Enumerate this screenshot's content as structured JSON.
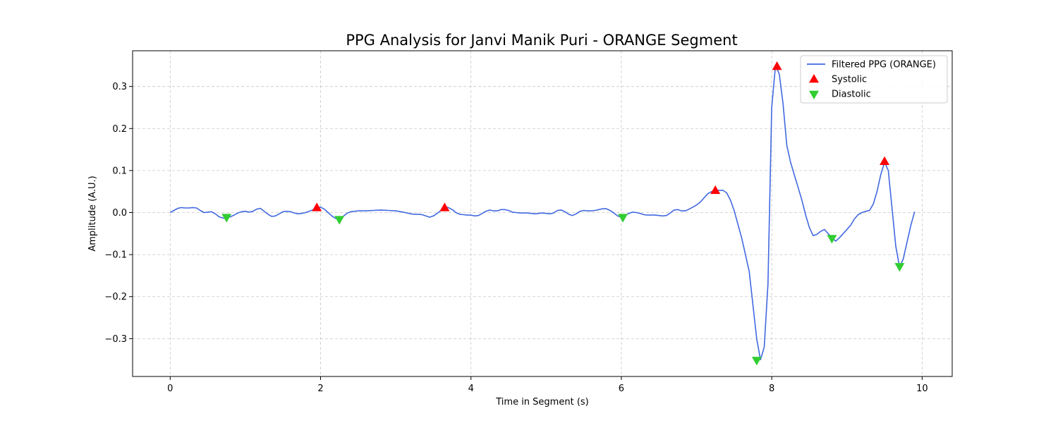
{
  "chart_data": {
    "type": "line",
    "title": "PPG Analysis for Janvi Manik Puri - ORANGE Segment",
    "xlabel": "Time in Segment (s)",
    "ylabel": "Amplitude (A.U.)",
    "xlim": [
      -0.5,
      10.4
    ],
    "ylim": [
      -0.39,
      0.385
    ],
    "x_ticks": [
      0,
      2,
      4,
      6,
      8,
      10
    ],
    "x_tick_labels": [
      "0",
      "2",
      "4",
      "6",
      "8",
      "10"
    ],
    "y_ticks": [
      -0.3,
      -0.2,
      -0.1,
      0.0,
      0.1,
      0.2,
      0.3
    ],
    "y_tick_labels": [
      "−0.3",
      "−0.2",
      "−0.1",
      "0.0",
      "0.1",
      "0.2",
      "0.3"
    ],
    "grid": true,
    "legend_position": "top-right",
    "series": [
      {
        "name": "Filtered PPG (ORANGE)",
        "kind": "line",
        "color": "#4169e1",
        "x": [
          0,
          0.05,
          0.1,
          0.15,
          0.2,
          0.25,
          0.3,
          0.35,
          0.4,
          0.45,
          0.5,
          0.55,
          0.6,
          0.65,
          0.7,
          0.75,
          0.8,
          0.85,
          0.9,
          0.95,
          1.0,
          1.05,
          1.1,
          1.15,
          1.2,
          1.25,
          1.3,
          1.35,
          1.4,
          1.45,
          1.5,
          1.55,
          1.6,
          1.65,
          1.7,
          1.75,
          1.8,
          1.85,
          1.9,
          1.95,
          2.0,
          2.05,
          2.1,
          2.15,
          2.2,
          2.25,
          2.3,
          2.35,
          2.4,
          2.5,
          2.6,
          2.7,
          2.8,
          2.9,
          3.0,
          3.1,
          3.2,
          3.25,
          3.3,
          3.35,
          3.4,
          3.45,
          3.5,
          3.55,
          3.6,
          3.65,
          3.7,
          3.75,
          3.8,
          3.85,
          3.9,
          3.95,
          4.0,
          4.05,
          4.1,
          4.15,
          4.2,
          4.25,
          4.3,
          4.35,
          4.4,
          4.45,
          4.5,
          4.55,
          4.6,
          4.65,
          4.7,
          4.75,
          4.8,
          4.85,
          4.9,
          4.95,
          5.0,
          5.05,
          5.1,
          5.15,
          5.2,
          5.25,
          5.3,
          5.35,
          5.4,
          5.45,
          5.5,
          5.55,
          5.6,
          5.65,
          5.7,
          5.75,
          5.8,
          5.85,
          5.9,
          5.95,
          6.0,
          6.05,
          6.1,
          6.15,
          6.2,
          6.25,
          6.3,
          6.35,
          6.4,
          6.45,
          6.5,
          6.55,
          6.6,
          6.65,
          6.7,
          6.75,
          6.8,
          6.85,
          6.9,
          6.95,
          7.0,
          7.05,
          7.1,
          7.15,
          7.2,
          7.25,
          7.3,
          7.35,
          7.4,
          7.45,
          7.5,
          7.6,
          7.7,
          7.75,
          7.8,
          7.85,
          7.9,
          7.95,
          8.0,
          8.05,
          8.1,
          8.15,
          8.2,
          8.25,
          8.3,
          8.35,
          8.4,
          8.45,
          8.5,
          8.55,
          8.6,
          8.65,
          8.7,
          8.75,
          8.8,
          8.85,
          8.9,
          8.95,
          9.0,
          9.05,
          9.1,
          9.15,
          9.2,
          9.25,
          9.3,
          9.35,
          9.4,
          9.45,
          9.5,
          9.55,
          9.6,
          9.65,
          9.7,
          9.75,
          9.8,
          9.85,
          9.9
        ],
        "y": [
          0.0,
          0.005,
          0.01,
          0.012,
          0.011,
          0.011,
          0.012,
          0.011,
          0.005,
          0.0,
          0.001,
          0.002,
          -0.003,
          -0.01,
          -0.013,
          -0.013,
          -0.01,
          -0.006,
          -0.001,
          0.002,
          0.003,
          0.001,
          0.003,
          0.008,
          0.01,
          0.003,
          -0.004,
          -0.009,
          -0.008,
          -0.003,
          0.002,
          0.003,
          0.002,
          -0.001,
          -0.003,
          -0.002,
          0.0,
          0.003,
          0.007,
          0.012,
          0.013,
          0.008,
          0.0,
          -0.008,
          -0.014,
          -0.016,
          -0.009,
          -0.002,
          0.002,
          0.004,
          0.004,
          0.005,
          0.006,
          0.005,
          0.004,
          0.001,
          -0.003,
          -0.004,
          -0.004,
          -0.005,
          -0.008,
          -0.011,
          -0.008,
          -0.002,
          0.005,
          0.013,
          0.012,
          0.007,
          0.0,
          -0.004,
          -0.005,
          -0.006,
          -0.006,
          -0.008,
          -0.007,
          -0.002,
          0.003,
          0.006,
          0.004,
          0.004,
          0.007,
          0.007,
          0.005,
          0.001,
          0.0,
          -0.001,
          -0.001,
          -0.001,
          -0.002,
          -0.003,
          -0.002,
          -0.001,
          -0.002,
          -0.003,
          -0.001,
          0.005,
          0.006,
          0.002,
          -0.004,
          -0.007,
          -0.003,
          0.003,
          0.005,
          0.004,
          0.004,
          0.005,
          0.007,
          0.009,
          0.009,
          0.005,
          -0.001,
          -0.008,
          -0.011,
          -0.007,
          -0.002,
          0.001,
          0.0,
          -0.002,
          -0.005,
          -0.006,
          -0.006,
          -0.006,
          -0.007,
          -0.008,
          -0.007,
          -0.001,
          0.006,
          0.007,
          0.004,
          0.004,
          0.008,
          0.013,
          0.018,
          0.025,
          0.035,
          0.045,
          0.05,
          0.052,
          0.053,
          0.053,
          0.047,
          0.03,
          0.005,
          -0.06,
          -0.14,
          -0.22,
          -0.3,
          -0.35,
          -0.32,
          -0.17,
          0.25,
          0.35,
          0.33,
          0.26,
          0.16,
          0.12,
          0.09,
          0.06,
          0.03,
          -0.005,
          -0.035,
          -0.055,
          -0.052,
          -0.045,
          -0.04,
          -0.05,
          -0.06,
          -0.068,
          -0.06,
          -0.05,
          -0.04,
          -0.03,
          -0.015,
          -0.005,
          0.0,
          0.003,
          0.005,
          0.02,
          0.05,
          0.09,
          0.12,
          0.1,
          0.01,
          -0.08,
          -0.13,
          -0.11,
          -0.07,
          -0.03,
          0.002
        ]
      },
      {
        "name": "Systolic",
        "kind": "marker-up",
        "color": "#ff0000",
        "x": [
          1.95,
          3.65,
          7.25,
          8.07,
          9.5
        ],
        "y": [
          0.012,
          0.012,
          0.053,
          0.348,
          0.122
        ]
      },
      {
        "name": "Diastolic",
        "kind": "marker-down",
        "color": "#32cd32",
        "x": [
          0.75,
          2.25,
          6.02,
          7.8,
          8.8,
          9.7
        ],
        "y": [
          -0.012,
          -0.017,
          -0.012,
          -0.352,
          -0.062,
          -0.129
        ]
      }
    ]
  }
}
